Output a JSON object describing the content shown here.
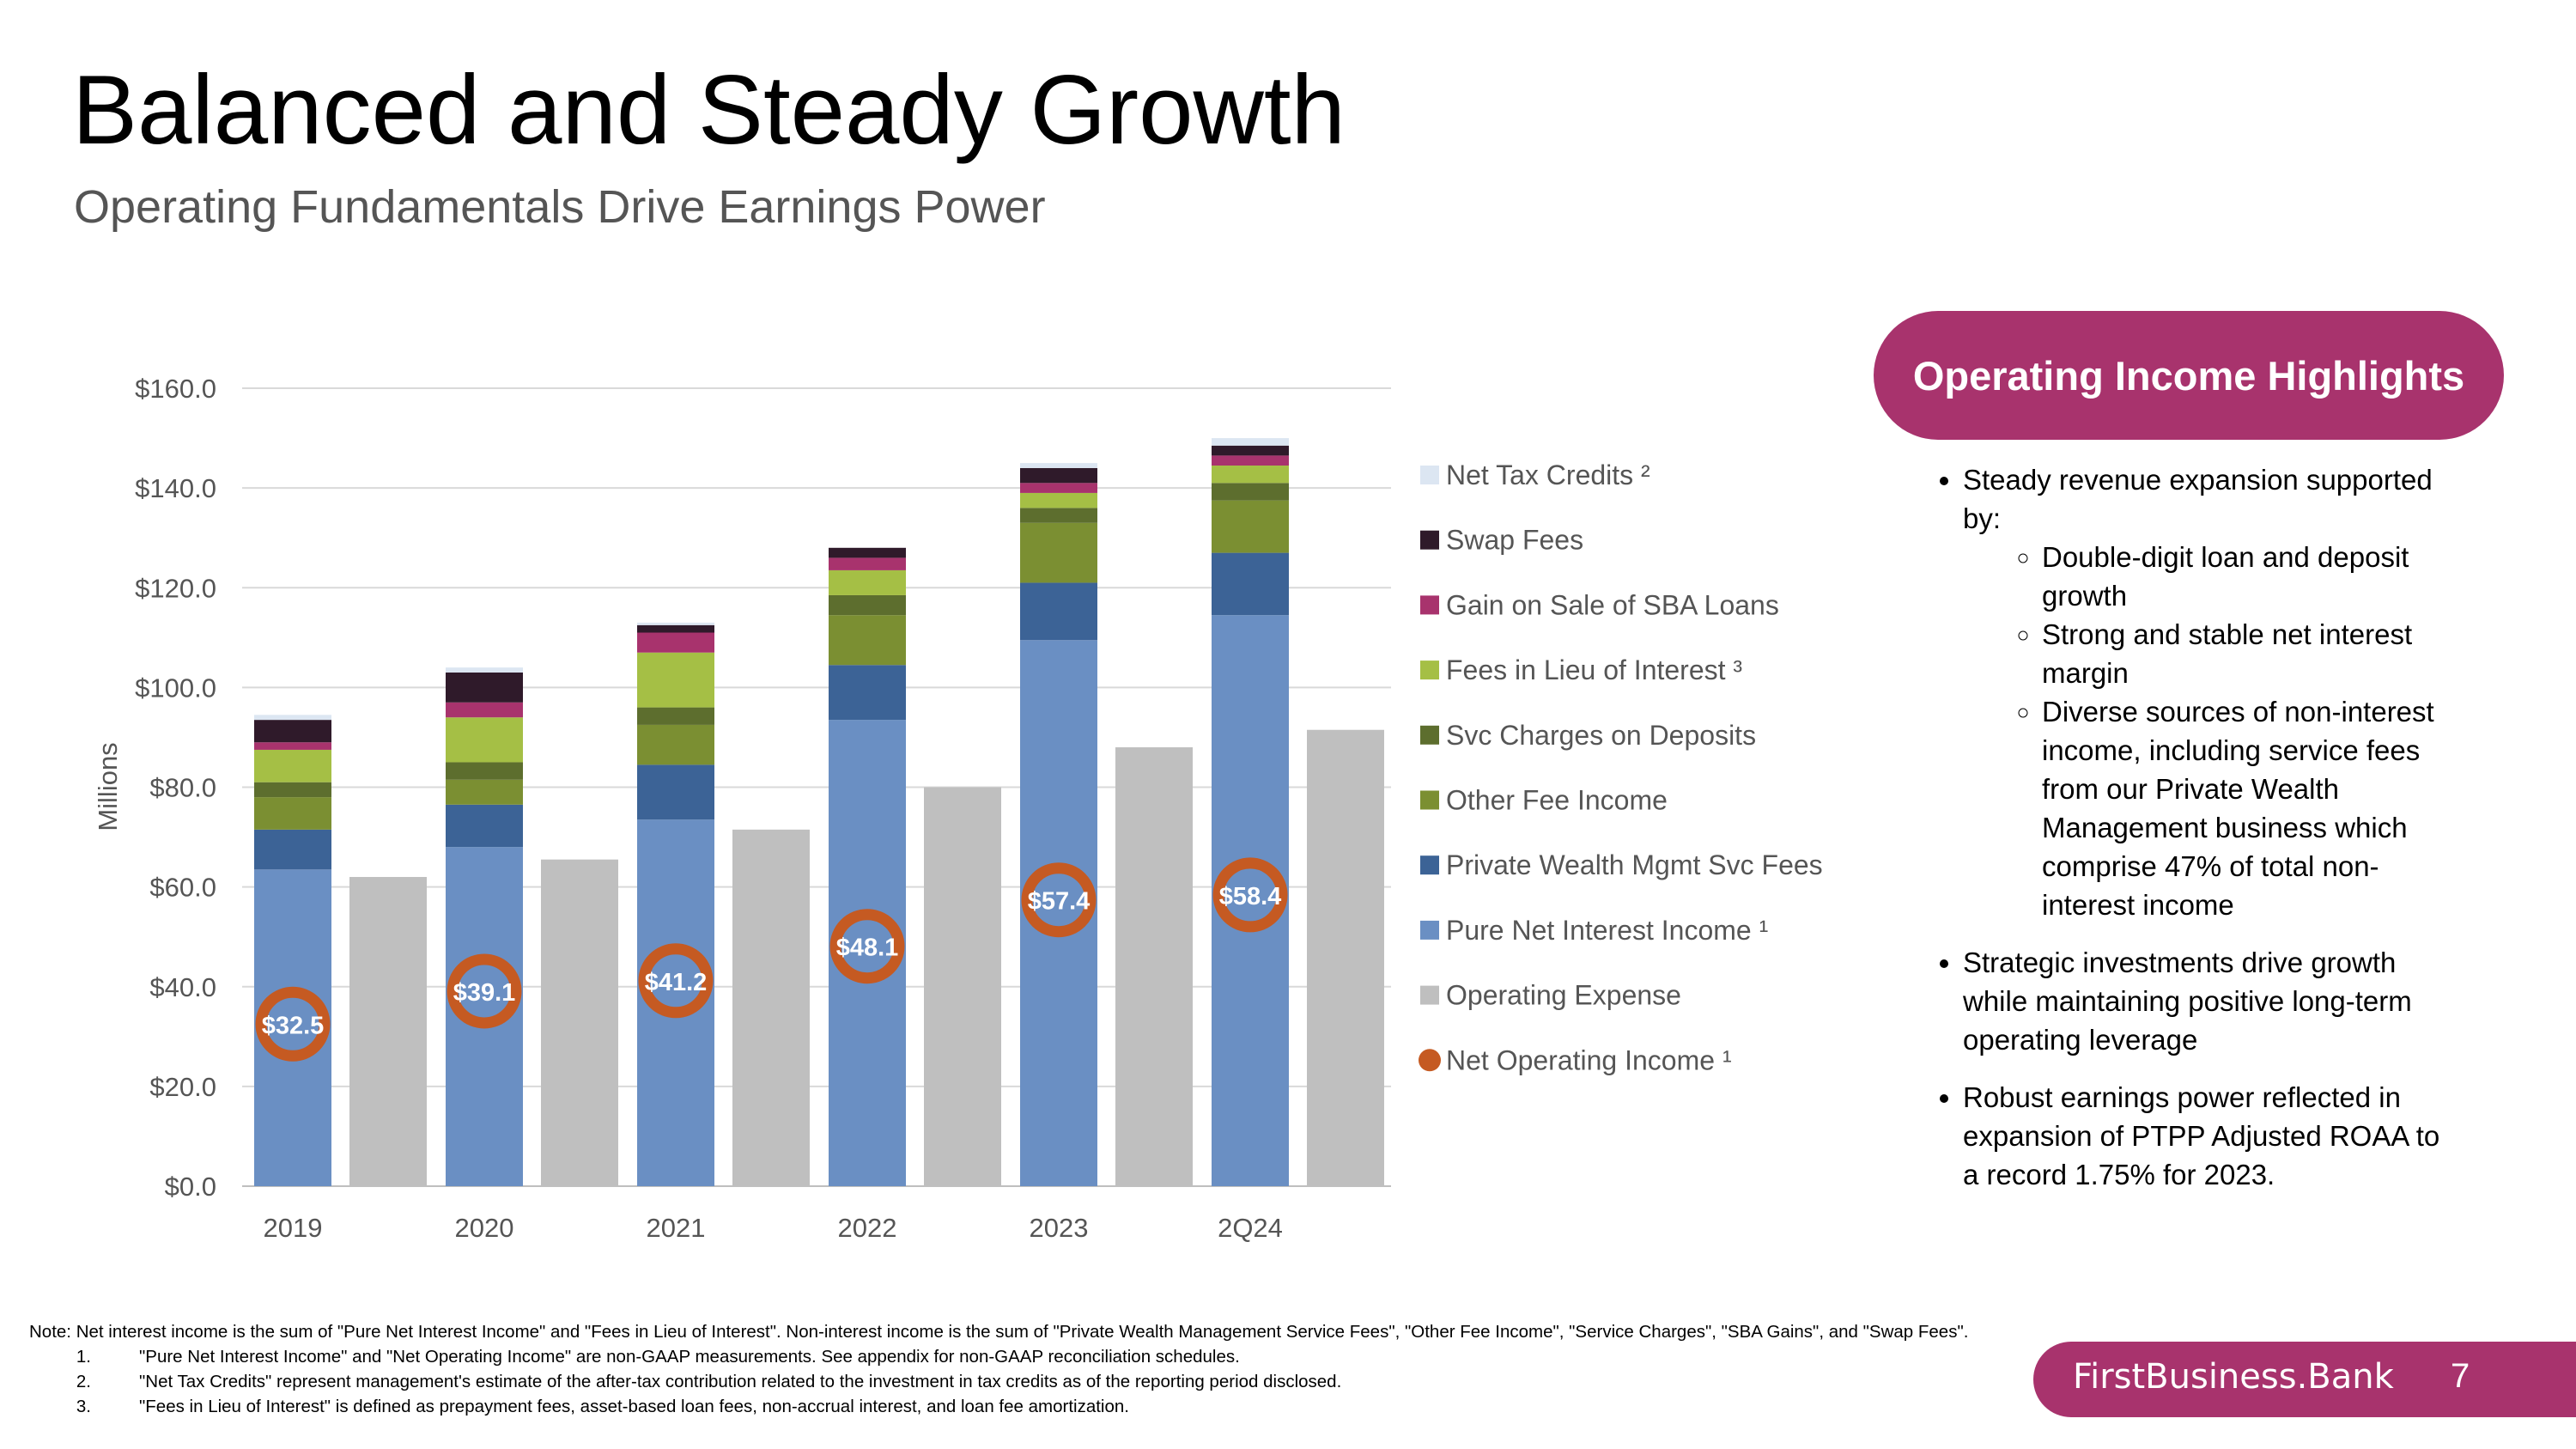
{
  "slide": {
    "title": "Balanced and Steady Growth",
    "subtitle": "Operating Fundamentals Drive Earnings Power",
    "page_number": "7",
    "brand": "FirstBusiness.Bank"
  },
  "highlights": {
    "heading": "Operating Income Highlights",
    "bullets": [
      {
        "text": "Steady revenue expansion supported by:",
        "sub": [
          "Double-digit loan and deposit growth",
          "Strong and stable net interest margin",
          "Diverse sources of non-interest income, including service fees from our Private Wealth Management business which comprise 47% of total non-interest income"
        ]
      },
      {
        "text": "Strategic investments drive growth while maintaining positive long-term operating leverage",
        "sub": []
      },
      {
        "text": "Robust earnings power reflected in expansion of PTPP Adjusted ROAA to a record 1.75% for 2023.",
        "sub": []
      }
    ]
  },
  "notes": {
    "main": "Note: Net interest income is the sum of \"Pure Net Interest Income\" and \"Fees in Lieu of Interest\". Non-interest income is the sum of \"Private Wealth Management Service Fees\", \"Other Fee Income\", \"Service Charges\", \"SBA Gains\", and \"Swap Fees\".",
    "footnotes": [
      {
        "num": "1.",
        "text": "\"Pure Net Interest Income\" and \"Net Operating Income\" are non-GAAP measurements. See appendix for non-GAAP reconciliation schedules."
      },
      {
        "num": "2.",
        "text": "\"Net Tax Credits\" represent management's estimate of the after-tax contribution related to the investment in tax credits as of the reporting period disclosed."
      },
      {
        "num": "3.",
        "text": "\"Fees in Lieu of Interest\" is defined as prepayment fees, asset-based loan fees, non-accrual interest, and loan fee amortization."
      }
    ]
  },
  "chart_data": {
    "type": "bar",
    "stacked": true,
    "ylabel": "Millions",
    "ylim": [
      0,
      160
    ],
    "yticks": [
      0,
      20,
      40,
      60,
      80,
      100,
      120,
      140,
      160
    ],
    "ytick_labels": [
      "$0.0",
      "$20.0",
      "$40.0",
      "$60.0",
      "$80.0",
      "$100.0",
      "$120.0",
      "$140.0",
      "$160.0"
    ],
    "grid": true,
    "legend_position": "right",
    "categories": [
      "2019",
      "2020",
      "2021",
      "2022",
      "2023",
      "2Q24 TTM"
    ],
    "category_labels": [
      "2019",
      "2020",
      "2021",
      "2022",
      "2023",
      "2Q24"
    ],
    "series": [
      {
        "name": "Pure Net Interest Income ¹",
        "color": "#6a8fc3",
        "values": [
          63.5,
          68,
          73.5,
          93.5,
          109.5,
          114.5
        ]
      },
      {
        "name": "Private Wealth Mgmt Svc Fees",
        "color": "#3c6396",
        "values": [
          8,
          8.5,
          11,
          11,
          11.5,
          12.5
        ]
      },
      {
        "name": "Other Fee Income",
        "color": "#7b8f32",
        "values": [
          6.5,
          5,
          8,
          10,
          12,
          10.5
        ]
      },
      {
        "name": "Svc Charges on Deposits",
        "color": "#5d6e2e",
        "values": [
          3,
          3.5,
          3.5,
          4,
          3,
          3.5
        ]
      },
      {
        "name": "Fees in Lieu of Interest ³",
        "color": "#a5bf45",
        "values": [
          6.5,
          9,
          11,
          5,
          3,
          3.5
        ]
      },
      {
        "name": "Gain on Sale of SBA Loans",
        "color": "#a8336d",
        "values": [
          1.5,
          3,
          4,
          2.5,
          2,
          2
        ]
      },
      {
        "name": "Swap Fees",
        "color": "#2f1a2a",
        "values": [
          4.5,
          6,
          1.5,
          2,
          3,
          2
        ]
      },
      {
        "name": "Net Tax Credits ²",
        "color": "#dce6f2",
        "values": [
          1,
          1,
          0.5,
          0,
          1,
          1.5
        ]
      }
    ],
    "operating_expense": {
      "name": "Operating Expense",
      "color": "#bfbfbf",
      "values": [
        62,
        65.5,
        71.5,
        80,
        88,
        91.5
      ]
    },
    "net_operating_income": {
      "name": "Net Operating Income ¹",
      "color": "#c55a22",
      "values": [
        32.5,
        39.1,
        41.2,
        48.1,
        57.4,
        58.4
      ],
      "labels": [
        "$32.5",
        "$39.1",
        "$41.2",
        "$48.1",
        "$57.4",
        "$58.4"
      ]
    },
    "legend_order": [
      "Net Tax Credits ²",
      "Swap Fees",
      "Gain on Sale of SBA Loans",
      "Fees in Lieu of Interest ³",
      "Svc Charges on Deposits",
      "Other Fee Income",
      "Private Wealth Mgmt Svc Fees",
      "Pure Net Interest Income ¹",
      "Operating Expense",
      "Net Operating Income ¹"
    ]
  }
}
